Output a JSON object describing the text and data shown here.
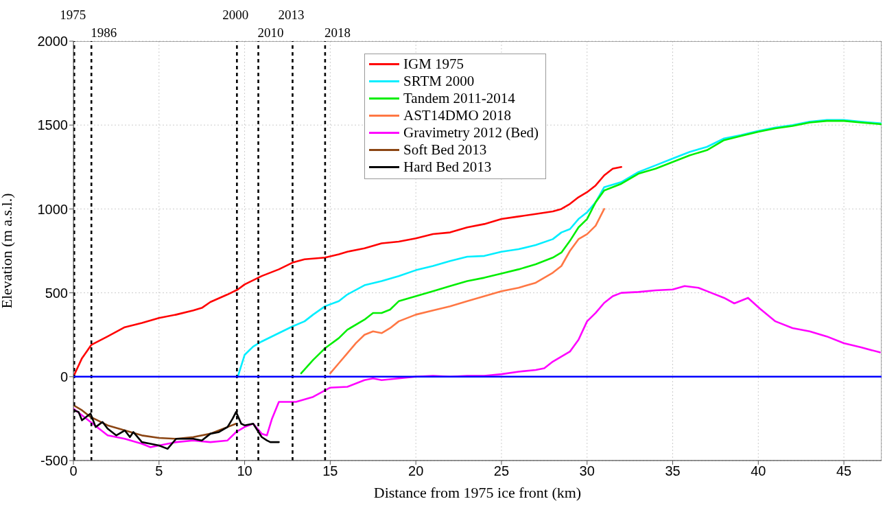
{
  "chart_data": {
    "type": "line",
    "xlabel": "Distance from 1975 ice front (km)",
    "ylabel": "Elevation (m a.s.l.)",
    "xlim": [
      0,
      47.2
    ],
    "xticks": [
      0,
      5,
      10,
      15,
      20,
      25,
      30,
      35,
      40,
      45
    ],
    "ylim": [
      -500,
      2000
    ],
    "yticks": [
      -500,
      0,
      500,
      1000,
      1500,
      2000
    ],
    "grid": true,
    "legend": "top",
    "series": [
      {
        "name": "IGM 1975",
        "color": "#ff0000",
        "x": [
          0,
          0.5,
          1.05,
          2,
          3,
          4,
          5,
          6,
          7,
          7.5,
          8,
          9,
          9.6,
          10,
          11,
          12,
          12.8,
          13.5,
          14.7,
          15.5,
          16,
          17,
          18,
          19,
          20,
          21,
          22,
          23,
          24,
          25,
          26,
          27,
          28,
          28.5,
          29,
          29.5,
          30,
          30.5,
          31,
          31.5,
          32
        ],
        "values": [
          0,
          110,
          190,
          240,
          295,
          320,
          350,
          370,
          395,
          410,
          445,
          490,
          520,
          550,
          600,
          640,
          680,
          700,
          710,
          730,
          745,
          765,
          795,
          805,
          825,
          850,
          860,
          890,
          910,
          940,
          955,
          970,
          985,
          1000,
          1030,
          1070,
          1100,
          1140,
          1200,
          1240,
          1250
        ]
      },
      {
        "name": "SRTM 2000",
        "color": "#00eeff",
        "x": [
          9.6,
          10,
          10.5,
          11,
          12,
          12.8,
          13.5,
          14,
          14.7,
          15.5,
          16,
          17,
          18,
          19,
          20,
          21,
          22,
          23,
          24,
          25,
          26,
          27,
          28,
          28.5,
          29,
          29.5,
          30,
          30.5,
          31,
          32,
          33,
          34,
          35,
          36,
          37,
          38,
          39,
          40,
          41,
          42,
          43,
          44,
          45,
          46,
          47.2
        ],
        "values": [
          0,
          130,
          180,
          210,
          260,
          300,
          330,
          370,
          420,
          450,
          490,
          545,
          570,
          600,
          635,
          660,
          690,
          715,
          720,
          745,
          760,
          785,
          820,
          860,
          880,
          940,
          980,
          1040,
          1130,
          1160,
          1220,
          1260,
          1300,
          1340,
          1370,
          1420,
          1440,
          1465,
          1485,
          1500,
          1520,
          1530,
          1530,
          1520,
          1510
        ]
      },
      {
        "name": "Tandem 2011-2014",
        "color": "#00ee00",
        "x": [
          13.3,
          14,
          14.7,
          15.5,
          16,
          17,
          17.5,
          18,
          18.5,
          19,
          20,
          21,
          22,
          23,
          24,
          25,
          26,
          27,
          28,
          28.5,
          29,
          29.5,
          30,
          30.5,
          31,
          32,
          33,
          34,
          35,
          36,
          37,
          38,
          39,
          40,
          41,
          42,
          43,
          44,
          45,
          46,
          47.2
        ],
        "values": [
          20,
          100,
          170,
          230,
          280,
          340,
          380,
          380,
          400,
          450,
          480,
          510,
          540,
          570,
          590,
          615,
          640,
          670,
          710,
          740,
          810,
          890,
          940,
          1040,
          1110,
          1150,
          1210,
          1240,
          1280,
          1320,
          1350,
          1410,
          1435,
          1460,
          1480,
          1495,
          1515,
          1525,
          1525,
          1515,
          1505
        ]
      },
      {
        "name": "AST14DMO 2018",
        "color": "#ff7744",
        "x": [
          15,
          15.5,
          16,
          16.5,
          17,
          17.5,
          18,
          18.5,
          19,
          20,
          21,
          22,
          23,
          24,
          25,
          26,
          27,
          28,
          28.5,
          29,
          29.5,
          30,
          30.5,
          31
        ],
        "values": [
          20,
          80,
          140,
          200,
          250,
          270,
          260,
          290,
          330,
          370,
          395,
          420,
          450,
          480,
          510,
          530,
          560,
          620,
          660,
          750,
          820,
          850,
          900,
          1000
        ]
      },
      {
        "name": "Gravimetry 2012 (Bed)",
        "color": "#ff00ff",
        "x": [
          0,
          0.5,
          1,
          2,
          3,
          4,
          4.5,
          5,
          6,
          7,
          8,
          9,
          9.5,
          10,
          10.5,
          11,
          11.3,
          11.6,
          12,
          12.5,
          13,
          14,
          15,
          16,
          17,
          17.5,
          18,
          19,
          20,
          21,
          22,
          23,
          24,
          25,
          26,
          27,
          27.5,
          28,
          29,
          29.5,
          30,
          30.5,
          31,
          31.5,
          32,
          33,
          34,
          35,
          35.7,
          36.5,
          37,
          38,
          38.6,
          39.4,
          40.1,
          41,
          42,
          43,
          44,
          45,
          46,
          47.1
        ],
        "values": [
          -190,
          -230,
          -270,
          -350,
          -370,
          -400,
          -420,
          -410,
          -390,
          -380,
          -390,
          -380,
          -330,
          -300,
          -280,
          -340,
          -350,
          -250,
          -150,
          -150,
          -150,
          -120,
          -65,
          -60,
          -20,
          -10,
          -20,
          -10,
          0,
          5,
          0,
          5,
          5,
          15,
          30,
          40,
          50,
          90,
          150,
          220,
          330,
          380,
          440,
          480,
          500,
          505,
          515,
          520,
          540,
          530,
          510,
          470,
          437,
          470,
          405,
          330,
          290,
          270,
          240,
          200,
          175,
          145
        ]
      },
      {
        "name": "Soft Bed 2013",
        "color": "#8b4513",
        "x": [
          0,
          0.5,
          1,
          2,
          3,
          4,
          5,
          6,
          7,
          8,
          8.5,
          9,
          9.5
        ],
        "values": [
          -170,
          -200,
          -240,
          -290,
          -320,
          -350,
          -365,
          -370,
          -360,
          -340,
          -320,
          -300,
          -280
        ]
      },
      {
        "name": "Hard Bed 2013",
        "color": "#000000",
        "x": [
          0,
          0.3,
          0.5,
          1,
          1.3,
          1.7,
          2,
          2.5,
          3,
          3.3,
          3.5,
          4,
          4.5,
          5,
          5.5,
          6,
          7,
          7.5,
          8,
          8.5,
          9,
          9.3,
          9.5,
          9.8,
          10,
          10.5,
          11,
          11.3,
          11.5,
          12
        ],
        "values": [
          -200,
          -210,
          -260,
          -220,
          -300,
          -270,
          -310,
          -350,
          -320,
          -360,
          -330,
          -390,
          -400,
          -410,
          -430,
          -370,
          -370,
          -380,
          -340,
          -330,
          -300,
          -250,
          -210,
          -280,
          -290,
          -280,
          -360,
          -380,
          -390,
          -390
        ]
      }
    ],
    "annotations": [
      {
        "text": "1975",
        "x": 0.05,
        "y": 2000
      },
      {
        "text": "1986",
        "x": 1.05,
        "y": 2000
      },
      {
        "text": "2000",
        "x": 9.55,
        "y": 2000
      },
      {
        "text": "2010",
        "x": 10.8,
        "y": 2000
      },
      {
        "text": "2013",
        "x": 12.8,
        "y": 2000
      },
      {
        "text": "2018",
        "x": 14.7,
        "y": 2000
      }
    ],
    "ref_lines": [
      {
        "axis": "x",
        "value": 0.05,
        "color": "#000000",
        "line_style": "dashed"
      },
      {
        "axis": "x",
        "value": 1.05,
        "color": "#000000",
        "line_style": "dashed"
      },
      {
        "axis": "x",
        "value": 9.55,
        "color": "#000000",
        "line_style": "dashed"
      },
      {
        "axis": "x",
        "value": 10.8,
        "color": "#000000",
        "line_style": "dashed"
      },
      {
        "axis": "x",
        "value": 12.8,
        "color": "#000000",
        "line_style": "dashed"
      },
      {
        "axis": "x",
        "value": 14.7,
        "color": "#000000",
        "line_style": "dashed"
      },
      {
        "axis": "y",
        "value": 0,
        "color": "#0000ff",
        "line_style": "solid"
      }
    ]
  }
}
